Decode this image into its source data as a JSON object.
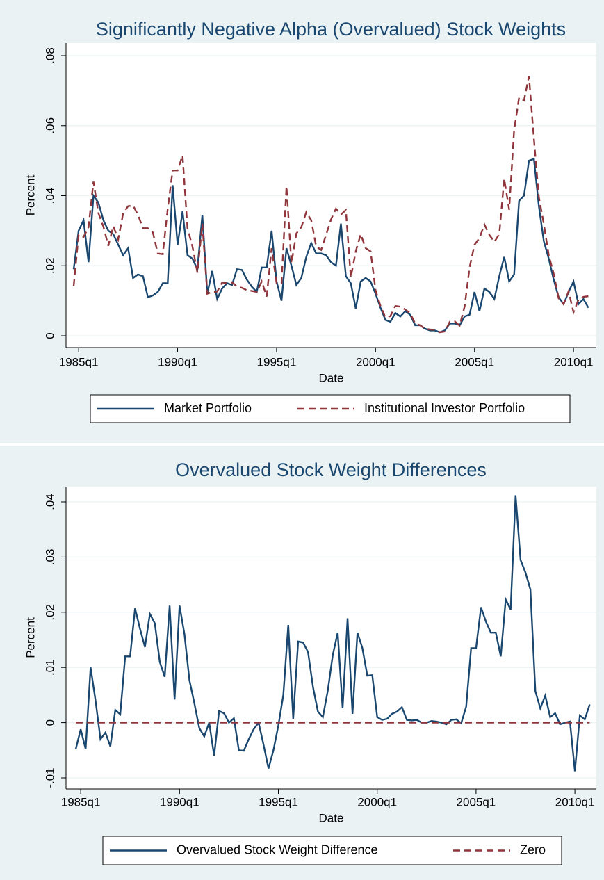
{
  "chart_data": [
    {
      "type": "line",
      "title": "Significantly Negative Alpha (Overvalued) Stock Weights",
      "x_label": "Date",
      "y_label": "Percent",
      "categories": [
        "1984q4",
        "1985q1",
        "1985q2",
        "1985q3",
        "1985q4",
        "1986q1",
        "1986q2",
        "1986q3",
        "1986q4",
        "1987q1",
        "1987q2",
        "1987q3",
        "1987q4",
        "1988q1",
        "1988q2",
        "1988q3",
        "1988q4",
        "1989q1",
        "1989q2",
        "1989q3",
        "1989q4",
        "1990q1",
        "1990q2",
        "1990q3",
        "1990q4",
        "1991q1",
        "1991q2",
        "1991q3",
        "1991q4",
        "1992q1",
        "1992q2",
        "1992q3",
        "1992q4",
        "1993q1",
        "1993q2",
        "1993q3",
        "1993q4",
        "1994q1",
        "1994q2",
        "1994q3",
        "1994q4",
        "1995q1",
        "1995q2",
        "1995q3",
        "1995q4",
        "1996q1",
        "1996q2",
        "1996q3",
        "1996q4",
        "1997q1",
        "1997q2",
        "1997q3",
        "1997q4",
        "1998q1",
        "1998q2",
        "1998q3",
        "1998q4",
        "1999q1",
        "1999q2",
        "1999q3",
        "1999q4",
        "2000q1",
        "2000q2",
        "2000q3",
        "2000q4",
        "2001q1",
        "2001q2",
        "2001q3",
        "2001q4",
        "2002q1",
        "2002q2",
        "2002q3",
        "2002q4",
        "2003q1",
        "2003q2",
        "2003q3",
        "2003q4",
        "2004q1",
        "2004q2",
        "2004q3",
        "2004q4",
        "2005q1",
        "2005q2",
        "2005q3",
        "2005q4",
        "2006q1",
        "2006q2",
        "2006q3",
        "2006q4",
        "2007q1",
        "2007q2",
        "2007q3",
        "2007q4",
        "2008q1",
        "2008q2",
        "2008q3",
        "2008q4",
        "2009q1",
        "2009q2",
        "2009q3",
        "2009q4",
        "2010q1",
        "2010q2",
        "2010q3",
        "2010q4"
      ],
      "xtick_labels": [
        "1985q1",
        "1990q1",
        "1995q1",
        "2000q1",
        "2005q1",
        "2010q1"
      ],
      "ylim": [
        0,
        0.08
      ],
      "yticks": [
        0,
        {
          "value": 0.02,
          "label": ".02"
        },
        {
          "value": 0.04,
          "label": ".04"
        },
        {
          "value": 0.06,
          "label": ".06"
        },
        {
          "value": 0.08,
          "label": ".08"
        }
      ],
      "grid": true,
      "series": [
        {
          "name": "Market Portfolio",
          "color": "#1a476f",
          "dashed": false,
          "values": [
            0.019,
            0.03,
            0.033,
            0.021,
            0.04,
            0.038,
            0.033,
            0.03,
            0.029,
            0.026,
            0.023,
            0.025,
            0.0165,
            0.0175,
            0.017,
            0.011,
            0.0115,
            0.0125,
            0.015,
            0.015,
            0.043,
            0.026,
            0.0355,
            0.023,
            0.022,
            0.019,
            0.0345,
            0.012,
            0.0185,
            0.0105,
            0.0135,
            0.015,
            0.0145,
            0.019,
            0.0188,
            0.016,
            0.014,
            0.0125,
            0.0195,
            0.0195,
            0.03,
            0.0155,
            0.01,
            0.025,
            0.02,
            0.0145,
            0.0165,
            0.0225,
            0.0265,
            0.0235,
            0.0235,
            0.023,
            0.021,
            0.02,
            0.032,
            0.017,
            0.015,
            0.0078,
            0.0155,
            0.0165,
            0.0155,
            0.012,
            0.008,
            0.0045,
            0.004,
            0.0065,
            0.0055,
            0.007,
            0.006,
            0.003,
            0.003,
            0.002,
            0.0015,
            0.0015,
            0.001,
            0.0015,
            0.0035,
            0.0035,
            0.003,
            0.0055,
            0.006,
            0.0125,
            0.007,
            0.0135,
            0.0125,
            0.0105,
            0.017,
            0.0225,
            0.0155,
            0.0175,
            0.0385,
            0.04,
            0.05,
            0.0505,
            0.037,
            0.027,
            0.022,
            0.016,
            0.011,
            0.009,
            0.0125,
            0.0155,
            0.009,
            0.0105,
            0.008
          ]
        },
        {
          "name": "Institutional Investor Portfolio",
          "color": "#90353b",
          "dashed": true,
          "values": [
            0.0142,
            0.0288,
            0.0282,
            0.031,
            0.044,
            0.035,
            0.0312,
            0.0257,
            0.0313,
            0.0275,
            0.035,
            0.037,
            0.0372,
            0.0345,
            0.0307,
            0.0307,
            0.0295,
            0.0235,
            0.0233,
            0.0362,
            0.0472,
            0.0472,
            0.0515,
            0.0307,
            0.0255,
            0.018,
            0.032,
            0.012,
            0.0125,
            0.0126,
            0.0152,
            0.015,
            0.0153,
            0.014,
            0.0137,
            0.013,
            0.0128,
            0.0125,
            0.0155,
            0.0112,
            0.025,
            0.015,
            0.015,
            0.0427,
            0.0207,
            0.0292,
            0.031,
            0.0353,
            0.033,
            0.0255,
            0.0245,
            0.0288,
            0.0332,
            0.0363,
            0.0346,
            0.0359,
            0.0166,
            0.0241,
            0.029,
            0.025,
            0.0241,
            0.013,
            0.0085,
            0.0052,
            0.0056,
            0.0085,
            0.0083,
            0.0075,
            0.0064,
            0.0035,
            0.003,
            0.002,
            0.0018,
            0.0017,
            0.001,
            0.0012,
            0.004,
            0.0041,
            0.0029,
            0.0084,
            0.0195,
            0.026,
            0.0279,
            0.0318,
            0.0288,
            0.0268,
            0.029,
            0.0448,
            0.036,
            0.0587,
            0.068,
            0.0672,
            0.0741,
            0.0562,
            0.0396,
            0.0319,
            0.023,
            0.0177,
            0.0107,
            0.009,
            0.0127,
            0.0067,
            0.0103,
            0.0111,
            0.0113
          ]
        }
      ]
    },
    {
      "type": "line",
      "title": "Overvalued Stock Weight Differences",
      "x_label": "Date",
      "y_label": "Percent",
      "categories": [
        "1984q4",
        "1985q1",
        "1985q2",
        "1985q3",
        "1985q4",
        "1986q1",
        "1986q2",
        "1986q3",
        "1986q4",
        "1987q1",
        "1987q2",
        "1987q3",
        "1987q4",
        "1988q1",
        "1988q2",
        "1988q3",
        "1988q4",
        "1989q1",
        "1989q2",
        "1989q3",
        "1989q4",
        "1990q1",
        "1990q2",
        "1990q3",
        "1990q4",
        "1991q1",
        "1991q2",
        "1991q3",
        "1991q4",
        "1992q1",
        "1992q2",
        "1992q3",
        "1992q4",
        "1993q1",
        "1993q2",
        "1993q3",
        "1993q4",
        "1994q1",
        "1994q2",
        "1994q3",
        "1994q4",
        "1995q1",
        "1995q2",
        "1995q3",
        "1995q4",
        "1996q1",
        "1996q2",
        "1996q3",
        "1996q4",
        "1997q1",
        "1997q2",
        "1997q3",
        "1997q4",
        "1998q1",
        "1998q2",
        "1998q3",
        "1998q4",
        "1999q1",
        "1999q2",
        "1999q3",
        "1999q4",
        "2000q1",
        "2000q2",
        "2000q3",
        "2000q4",
        "2001q1",
        "2001q2",
        "2001q3",
        "2001q4",
        "2002q1",
        "2002q2",
        "2002q3",
        "2002q4",
        "2003q1",
        "2003q2",
        "2003q3",
        "2003q4",
        "2004q1",
        "2004q2",
        "2004q3",
        "2004q4",
        "2005q1",
        "2005q2",
        "2005q3",
        "2005q4",
        "2006q1",
        "2006q2",
        "2006q3",
        "2006q4",
        "2007q1",
        "2007q2",
        "2007q3",
        "2007q4",
        "2008q1",
        "2008q2",
        "2008q3",
        "2008q4",
        "2009q1",
        "2009q2",
        "2009q3",
        "2009q4",
        "2010q1",
        "2010q2",
        "2010q3",
        "2010q4"
      ],
      "xtick_labels": [
        "1985q1",
        "1990q1",
        "1995q1",
        "2000q1",
        "2005q1",
        "2010q1"
      ],
      "ylim": [
        -0.01,
        0.04
      ],
      "yticks": [
        {
          "value": -0.01,
          "label": "-.01"
        },
        0,
        {
          "value": 0.01,
          "label": ".01"
        },
        {
          "value": 0.02,
          "label": ".02"
        },
        {
          "value": 0.03,
          "label": ".03"
        },
        {
          "value": 0.04,
          "label": ".04"
        }
      ],
      "grid": true,
      "series": [
        {
          "name": "Overvalued Stock Weight Difference",
          "color": "#1a476f",
          "dashed": false,
          "values": [
            -0.0048,
            -0.0012,
            -0.0048,
            0.01,
            0.004,
            -0.003,
            -0.0018,
            -0.0043,
            0.0023,
            0.0015,
            0.012,
            0.012,
            0.0207,
            0.017,
            0.0137,
            0.0197,
            0.018,
            0.011,
            0.0083,
            0.0212,
            0.0042,
            0.0212,
            0.016,
            0.0077,
            0.0035,
            -0.001,
            -0.0025,
            0,
            -0.006,
            0.0021,
            0.0017,
            0,
            0.0008,
            -0.005,
            -0.0051,
            -0.003,
            -0.0012,
            0,
            -0.004,
            -0.0083,
            -0.005,
            -0.0005,
            0.005,
            0.0177,
            0.0007,
            0.0147,
            0.0145,
            0.0128,
            0.0065,
            0.002,
            0.001,
            0.0058,
            0.0122,
            0.0163,
            0.0026,
            0.0189,
            0.0016,
            0.0163,
            0.0135,
            0.0085,
            0.0086,
            0.001,
            0.0005,
            0.0007,
            0.0016,
            0.002,
            0.0028,
            0.0005,
            0.0004,
            0.0005,
            0,
            0,
            0.0003,
            0.0002,
            0,
            -0.0003,
            0.0005,
            0.0006,
            -0.0001,
            0.0029,
            0.0135,
            0.0135,
            0.0209,
            0.0183,
            0.0163,
            0.0163,
            0.012,
            0.0223,
            0.0205,
            0.0412,
            0.0295,
            0.0272,
            0.0241,
            0.0057,
            0.0026,
            0.0049,
            0.001,
            0.0017,
            -0.0003,
            0,
            0.0002,
            -0.0088,
            0.0013,
            0.0006,
            0.0033
          ]
        },
        {
          "name": "Zero",
          "color": "#90353b",
          "dashed": true,
          "value": 0
        }
      ]
    }
  ]
}
